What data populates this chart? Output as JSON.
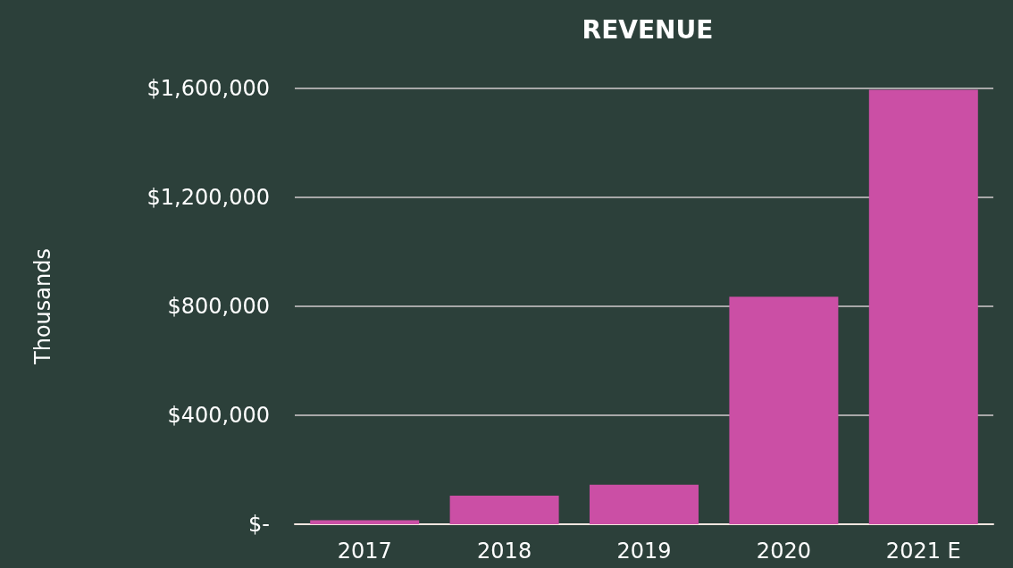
{
  "chart_data": {
    "type": "bar",
    "title": "REVENUE",
    "ylabel": "Thousands",
    "categories": [
      "2017",
      "2018",
      "2019",
      "2020",
      "2021 E"
    ],
    "values": [
      15000,
      105000,
      145000,
      835000,
      1595000
    ],
    "color": "#cb4fa5",
    "ylim": [
      0,
      1600000
    ],
    "yticks": [
      {
        "value": 0,
        "label": "$-"
      },
      {
        "value": 400000,
        "label": "$400,000"
      },
      {
        "value": 800000,
        "label": "$800,000"
      },
      {
        "value": 1200000,
        "label": "$1,200,000"
      },
      {
        "value": 1600000,
        "label": "$1,600,000"
      }
    ],
    "grid": true
  }
}
